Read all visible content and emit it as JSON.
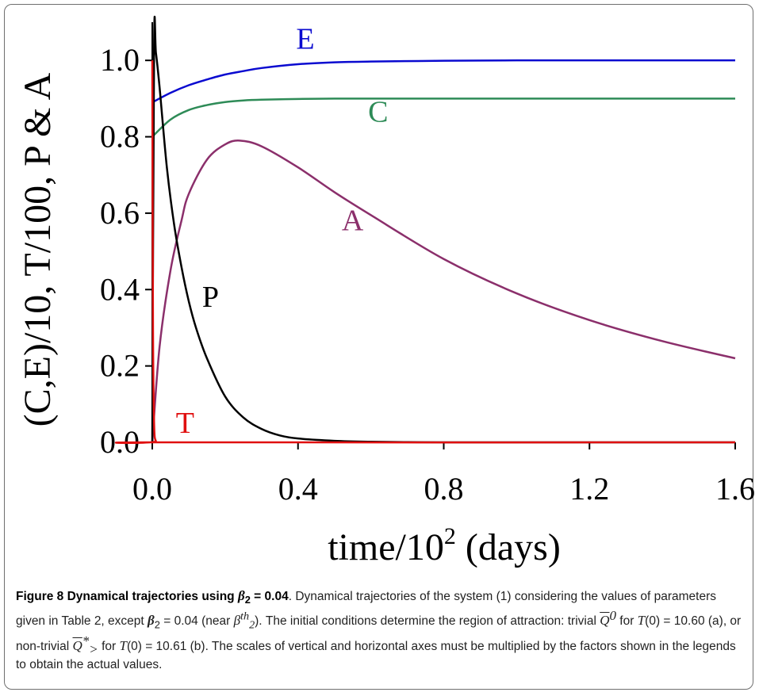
{
  "chart_data": {
    "type": "line",
    "xlabel": "time/10",
    "xlabel_sup": "2",
    "xlabel_unit": "(days)",
    "ylabel": "(C,E)/10, T/100, P & A",
    "xlim": [
      0,
      1.6
    ],
    "ylim": [
      0,
      1.1
    ],
    "x_ticks": [
      0.0,
      0.4,
      0.8,
      1.2,
      1.6
    ],
    "x_tick_labels": [
      "0.0",
      "0.4",
      "0.8",
      "1.2",
      "1.6"
    ],
    "y_ticks": [
      0.0,
      0.2,
      0.4,
      0.6,
      0.8,
      1.0
    ],
    "y_tick_labels": [
      "0.0",
      "0.2",
      "0.4",
      "0.6",
      "0.8",
      "1.0"
    ],
    "grid": false,
    "series": [
      {
        "name": "E",
        "color": "#0a0ad0",
        "x": [
          0,
          0.05,
          0.1,
          0.15,
          0.2,
          0.25,
          0.3,
          0.4,
          0.5,
          0.6,
          0.8,
          1.0,
          1.2,
          1.4,
          1.6
        ],
        "y": [
          0.89,
          0.915,
          0.935,
          0.95,
          0.963,
          0.972,
          0.98,
          0.99,
          0.995,
          0.997,
          0.999,
          1.0,
          1.0,
          1.0,
          1.0
        ]
      },
      {
        "name": "C",
        "color": "#2e8b57",
        "x": [
          0,
          0.05,
          0.1,
          0.15,
          0.2,
          0.25,
          0.3,
          0.4,
          0.5,
          0.6,
          0.8,
          1.0,
          1.2,
          1.4,
          1.6
        ],
        "y": [
          0.8,
          0.845,
          0.87,
          0.883,
          0.891,
          0.895,
          0.897,
          0.899,
          0.9,
          0.9,
          0.9,
          0.9,
          0.9,
          0.9,
          0.9
        ]
      },
      {
        "name": "A",
        "color": "#8b2f6b",
        "x": [
          0,
          0.02,
          0.05,
          0.08,
          0.1,
          0.15,
          0.2,
          0.24,
          0.3,
          0.4,
          0.5,
          0.6,
          0.8,
          1.0,
          1.2,
          1.4,
          1.6
        ],
        "y": [
          0.0,
          0.25,
          0.45,
          0.58,
          0.65,
          0.74,
          0.78,
          0.79,
          0.775,
          0.72,
          0.655,
          0.595,
          0.48,
          0.39,
          0.32,
          0.265,
          0.22
        ]
      },
      {
        "name": "P",
        "color": "#000000",
        "x": [
          0,
          0.005,
          0.01,
          0.02,
          0.04,
          0.06,
          0.08,
          0.1,
          0.12,
          0.15,
          0.2,
          0.25,
          0.3,
          0.35,
          0.4,
          0.5,
          0.6,
          0.7,
          0.8,
          1.0,
          1.6
        ],
        "y": [
          0.0,
          1.04,
          1.02,
          0.93,
          0.72,
          0.57,
          0.46,
          0.37,
          0.3,
          0.22,
          0.12,
          0.065,
          0.035,
          0.018,
          0.01,
          0.004,
          0.0015,
          0.0005,
          0.0,
          0.0,
          0.0
        ]
      },
      {
        "name": "T",
        "color": "#e01010",
        "x": [
          0,
          0.002,
          0.005,
          0.01,
          0.02,
          1.6
        ],
        "y": [
          1.0,
          0.3,
          0.05,
          0.003,
          0.0,
          0.0
        ]
      }
    ]
  },
  "caption": {
    "title_prefix": "Figure 8 Dynamical trajectories using ",
    "title_beta": "β",
    "title_beta_sub": "2",
    "title_value": " = 0.04",
    "title_end": ". ",
    "t1": "Dynamical trajectories of the system (1) considering the values of parameters given in Table 2, except ",
    "beta": "β",
    "beta_sub": "2",
    "t2": " = 0.04 (near ",
    "beta_th": "β",
    "beta_th_sup": "th",
    "beta_th_sub": "2",
    "t3": "). The initial conditions determine the region of attraction: trivial ",
    "q0": "Q",
    "q0_sup": "0",
    "t4": " for ",
    "t_var": "T",
    "t5": "(0) = 10.60 (a), or non-trivial ",
    "qs": "Q",
    "qs_sup": "*",
    "qs_sub": ">",
    "t6": " for ",
    "t_var2": "T",
    "t7": "(0) = 10.61 (b). The scales of vertical and horizontal axes must be multiplied by the factors shown in the legends to obtain the actual values."
  }
}
